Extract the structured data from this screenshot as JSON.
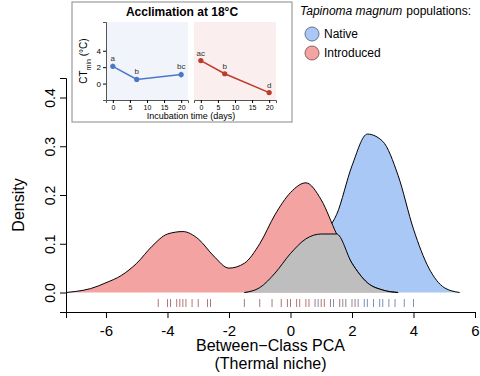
{
  "chart_data": [
    {
      "type": "density",
      "xlabel": [
        "Between−Class PCA",
        "(Thermal niche)"
      ],
      "ylabel": "Density",
      "xlim": [
        -7.3,
        6
      ],
      "xticks": [
        -6,
        -4,
        -2,
        0,
        2,
        4,
        6
      ],
      "ylim": [
        -0.04,
        0.44
      ],
      "yticks": [
        {
          "value": 0,
          "label": "0.0"
        },
        0.1,
        0.2,
        0.3,
        0.4
      ],
      "legend": "top-right",
      "legend_title": [
        "Tapinoma magnum",
        "populations:"
      ],
      "series": [
        {
          "name": "Native",
          "color": "#a9c8f5",
          "x": [
            -1.5,
            -1,
            -0.5,
            0,
            0.5,
            1,
            1.5,
            2,
            2.5,
            3,
            3.5,
            4,
            4.5,
            5,
            5.5
          ],
          "values": [
            0,
            0.01,
            0.04,
            0.08,
            0.11,
            0.12,
            0.16,
            0.26,
            0.325,
            0.31,
            0.24,
            0.13,
            0.05,
            0.01,
            0
          ],
          "rug": [
            0.9,
            1.4,
            1.7,
            2.0,
            2.2,
            2.4,
            2.5,
            2.7,
            2.9,
            3.0,
            3.2,
            3.4,
            3.7,
            4.0
          ]
        },
        {
          "name": "Introduced",
          "color": "#f4a3a3",
          "x": [
            -7.3,
            -7,
            -6.5,
            -6,
            -5.5,
            -5,
            -4.5,
            -4,
            -3.5,
            -3,
            -2.5,
            -2,
            -1.5,
            -1,
            -0.5,
            0,
            0.5,
            1,
            1.5,
            2,
            2.5,
            3,
            3.5
          ],
          "values": [
            0,
            0.002,
            0.008,
            0.02,
            0.035,
            0.06,
            0.095,
            0.12,
            0.125,
            0.11,
            0.075,
            0.05,
            0.06,
            0.1,
            0.16,
            0.205,
            0.225,
            0.19,
            0.12,
            0.06,
            0.02,
            0.005,
            0
          ],
          "rug": [
            -4.3,
            -4.0,
            -3.9,
            -3.7,
            -3.6,
            -3.5,
            -3.4,
            -3.2,
            -3.0,
            -2.7,
            -2.6,
            -1.5,
            -1.0,
            -0.6,
            -0.3,
            -0.1,
            0.0,
            0.2,
            0.3,
            0.5,
            0.6,
            0.8,
            1.0,
            1.1,
            1.3,
            1.6,
            1.8,
            2.1
          ]
        },
        {
          "color": "#bebebe",
          "x": [
            -1.5,
            -1,
            -0.5,
            0,
            0.5,
            1,
            1.5,
            2,
            2.5,
            3,
            3.5
          ],
          "values": [
            0,
            0.01,
            0.04,
            0.08,
            0.11,
            0.12,
            0.12,
            0.06,
            0.02,
            0.005,
            0
          ]
        }
      ]
    },
    {
      "type": "line",
      "title": "Acclimation at 18°C",
      "xlabel": "Incubation time (days)",
      "ylabel": [
        "CT",
        "min",
        " (°C)"
      ],
      "xlim": [
        -2,
        22
      ],
      "xticks": [
        0,
        5,
        10,
        15,
        20
      ],
      "ylim": [
        -2,
        7.5
      ],
      "yticks": [
        0,
        2,
        4
      ],
      "marker": "circle",
      "series": [
        {
          "color": "#4a78c9",
          "x": [
            0,
            7,
            20
          ],
          "values": [
            2.1,
            0.5,
            1.1
          ],
          "errors": [
            0.3,
            0.3,
            0.35
          ],
          "annotations": [
            "a",
            "b",
            "bc"
          ]
        },
        {
          "color": "#c0392b",
          "x": [
            0,
            7,
            20
          ],
          "values": [
            2.8,
            1.2,
            -1.1
          ],
          "errors": [
            0.2,
            0.15,
            0.2
          ],
          "annotations": [
            "ac",
            "b",
            "d"
          ]
        }
      ]
    }
  ]
}
